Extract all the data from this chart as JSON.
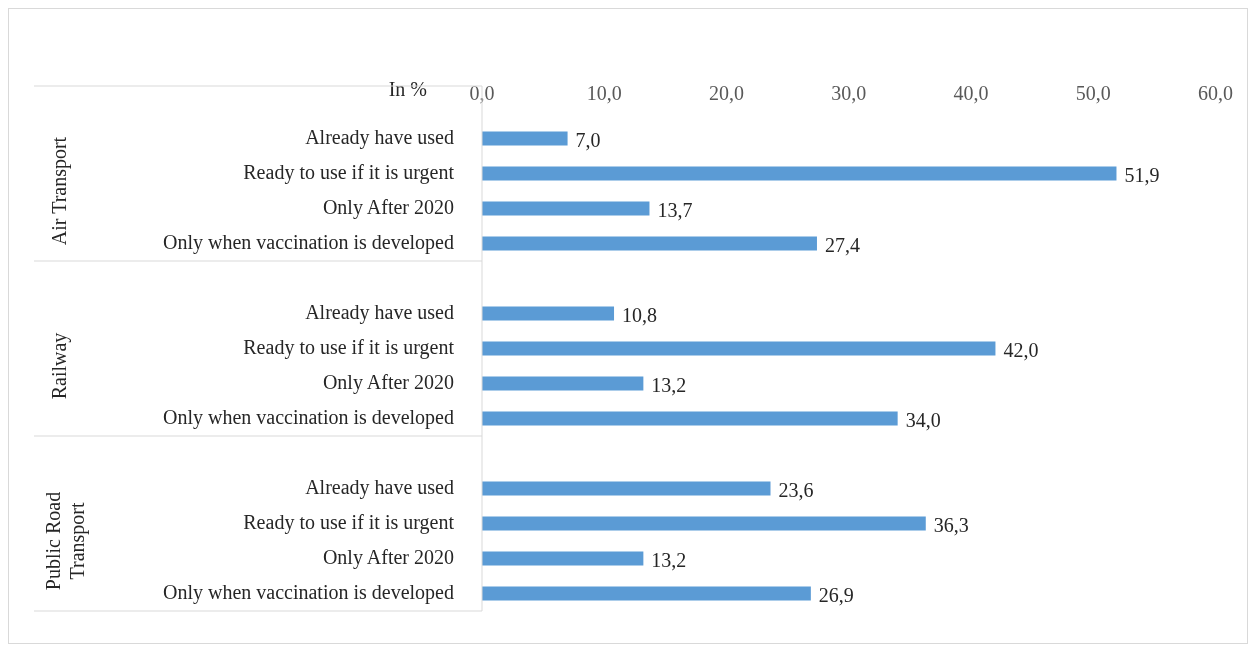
{
  "chart_data": {
    "type": "bar",
    "orientation": "horizontal",
    "xlabel": "In %",
    "categories": [
      "Already have used",
      "Ready to use if it is urgent",
      "Only After 2020",
      "Only when vaccination is developed",
      null,
      "Already have used",
      "Ready to use if it is urgent",
      "Only After 2020",
      "Only when vaccination is developed",
      null,
      "Already have used",
      "Ready to use if it is urgent",
      "Only After 2020",
      "Only when vaccination is developed"
    ],
    "values": [
      7.0,
      51.9,
      13.7,
      27.4,
      null,
      10.8,
      42.0,
      13.2,
      34.0,
      null,
      23.6,
      36.3,
      13.2,
      26.9
    ],
    "value_labels": [
      "7,0",
      "51,9",
      "13,7",
      "27,4",
      null,
      "10,8",
      "42,0",
      "13,2",
      "34,0",
      null,
      "23,6",
      "36,3",
      "13,2",
      "26,9"
    ],
    "color": "#5b9bd5",
    "annotations": [
      "Air Transport",
      "Railway",
      "Public Road Transport"
    ],
    "xlim": [
      0,
      60
    ],
    "xticks": [
      {
        "value": 0,
        "label": "0,0"
      },
      {
        "value": 10,
        "label": "10,0"
      },
      {
        "value": 20,
        "label": "20,0"
      },
      {
        "value": 30,
        "label": "30,0"
      },
      {
        "value": 40,
        "label": "40,0"
      },
      {
        "value": 50,
        "label": "50,0"
      },
      {
        "value": 60,
        "label": "60,0"
      }
    ],
    "legend": false
  }
}
